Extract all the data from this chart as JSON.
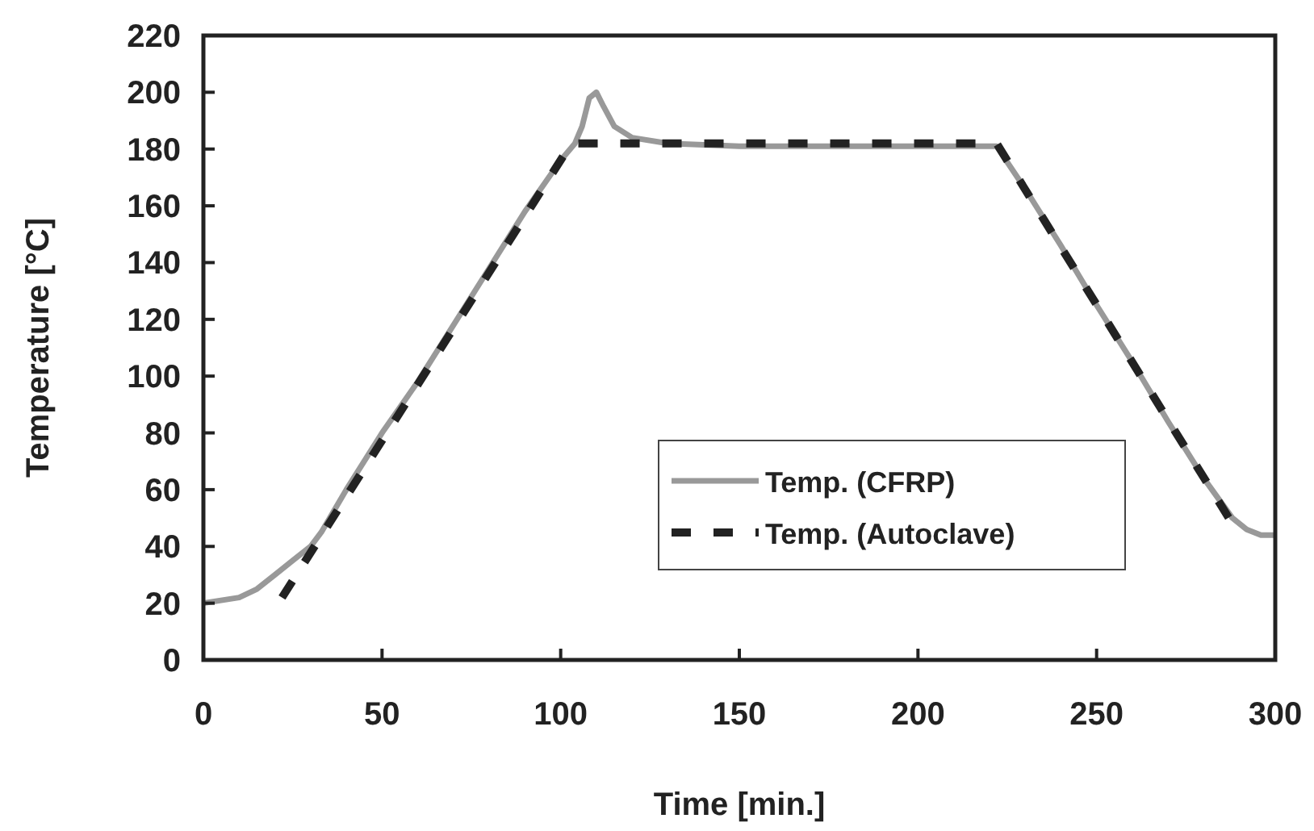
{
  "chart_data": {
    "type": "line",
    "xlabel": "Time [min.]",
    "ylabel": "Temperature [°C]",
    "xlim": [
      0,
      300
    ],
    "xticks": [
      0,
      50,
      100,
      150,
      200,
      250,
      300
    ],
    "ylim": [
      0,
      220
    ],
    "yticks": [
      0,
      20,
      40,
      60,
      80,
      100,
      120,
      140,
      160,
      180,
      200,
      220
    ],
    "grid": false,
    "legend": "right",
    "marker": "none",
    "series": [
      {
        "name": "Temp. (CFRP)",
        "color": "#999999",
        "line_style": "solid",
        "x": [
          0,
          10,
          15,
          20,
          25,
          30,
          33,
          40,
          50,
          60,
          70,
          80,
          90,
          100,
          104,
          106,
          108,
          110,
          112,
          115,
          120,
          130,
          150,
          200,
          222,
          230,
          240,
          250,
          260,
          270,
          280,
          288,
          292,
          296,
          300
        ],
        "values": [
          20,
          22,
          25,
          30,
          35,
          40,
          45,
          60,
          80,
          98,
          118,
          138,
          158,
          176,
          182,
          188,
          198,
          200,
          195,
          188,
          184,
          182,
          181,
          181,
          181,
          166,
          146,
          125,
          105,
          84,
          64,
          50,
          46,
          44,
          44
        ]
      },
      {
        "name": "Temp. (Autoclave)",
        "color": "#222222",
        "line_style": "dashed",
        "x": [
          22,
          103,
          222,
          288
        ],
        "values": [
          22,
          182,
          182,
          48
        ]
      }
    ]
  }
}
